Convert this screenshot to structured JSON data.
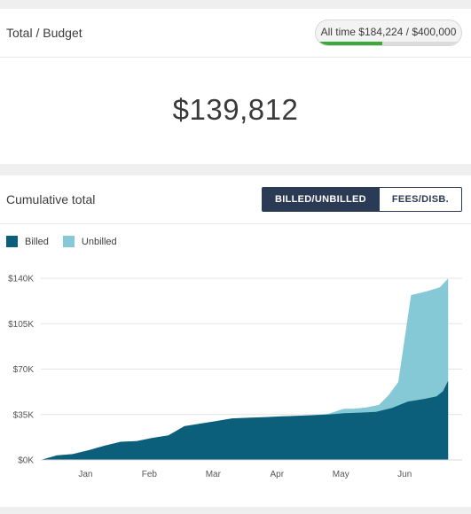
{
  "budget_card": {
    "title": "Total / Budget",
    "pill_text": "All time $184,224 / $400,000",
    "pill_progress": 0.46,
    "progress_color": "#3aab3a",
    "big_total": "$139,812"
  },
  "chart_card": {
    "title": "Cumulative total",
    "toggle": {
      "active_label": "BILLED/UNBILLED",
      "inactive_label": "FEES/DISB."
    }
  },
  "chart_data": {
    "type": "area",
    "stacked": false,
    "title": "",
    "xlabel": "",
    "ylabel": "",
    "legend_placement": "top-left",
    "grid": true,
    "xlim": [
      0,
      6.6
    ],
    "ylim": [
      0,
      140000
    ],
    "y_ticks": [
      {
        "value": 0,
        "label": "$0K"
      },
      {
        "value": 35000,
        "label": "$35K"
      },
      {
        "value": 70000,
        "label": "$70K"
      },
      {
        "value": 105000,
        "label": "$105K"
      },
      {
        "value": 140000,
        "label": "$140K"
      }
    ],
    "x_ticks": [
      {
        "value": 0.7,
        "label": "Jan"
      },
      {
        "value": 1.7,
        "label": "Feb"
      },
      {
        "value": 2.7,
        "label": "Mar"
      },
      {
        "value": 3.7,
        "label": "Apr"
      },
      {
        "value": 4.7,
        "label": "May"
      },
      {
        "value": 5.7,
        "label": "Jun"
      }
    ],
    "series": [
      {
        "name": "Unbilled",
        "color": "#86c9d6",
        "points": [
          [
            0,
            0
          ],
          [
            0.25,
            3500
          ],
          [
            0.5,
            4500
          ],
          [
            0.75,
            7500
          ],
          [
            1,
            11000
          ],
          [
            1.25,
            14000
          ],
          [
            1.5,
            14500
          ],
          [
            1.75,
            17000
          ],
          [
            2,
            19000
          ],
          [
            2.25,
            26000
          ],
          [
            2.5,
            28000
          ],
          [
            2.75,
            30000
          ],
          [
            3,
            32000
          ],
          [
            3.25,
            32500
          ],
          [
            3.5,
            33000
          ],
          [
            3.75,
            33500
          ],
          [
            4,
            34000
          ],
          [
            4.25,
            34500
          ],
          [
            4.5,
            35500
          ],
          [
            4.75,
            39500
          ],
          [
            4.9,
            39500
          ],
          [
            5.1,
            40500
          ],
          [
            5.3,
            42500
          ],
          [
            5.45,
            50000
          ],
          [
            5.6,
            60000
          ],
          [
            5.8,
            127000
          ],
          [
            6.05,
            130000
          ],
          [
            6.25,
            133000
          ],
          [
            6.38,
            139812
          ]
        ]
      },
      {
        "name": "Billed",
        "color": "#0b5f7a",
        "points": [
          [
            0,
            0
          ],
          [
            0.25,
            3500
          ],
          [
            0.5,
            4500
          ],
          [
            0.75,
            7500
          ],
          [
            1,
            11000
          ],
          [
            1.25,
            14000
          ],
          [
            1.5,
            14500
          ],
          [
            1.75,
            17000
          ],
          [
            2,
            19000
          ],
          [
            2.25,
            26000
          ],
          [
            2.5,
            28000
          ],
          [
            2.75,
            30000
          ],
          [
            3,
            32000
          ],
          [
            3.25,
            32500
          ],
          [
            3.5,
            33000
          ],
          [
            3.75,
            33500
          ],
          [
            4,
            34000
          ],
          [
            4.25,
            34500
          ],
          [
            4.5,
            35000
          ],
          [
            4.75,
            36000
          ],
          [
            5,
            36500
          ],
          [
            5.25,
            37000
          ],
          [
            5.5,
            40000
          ],
          [
            5.75,
            45000
          ],
          [
            6.0,
            47000
          ],
          [
            6.2,
            49000
          ],
          [
            6.3,
            53000
          ],
          [
            6.38,
            61000
          ]
        ]
      }
    ]
  }
}
